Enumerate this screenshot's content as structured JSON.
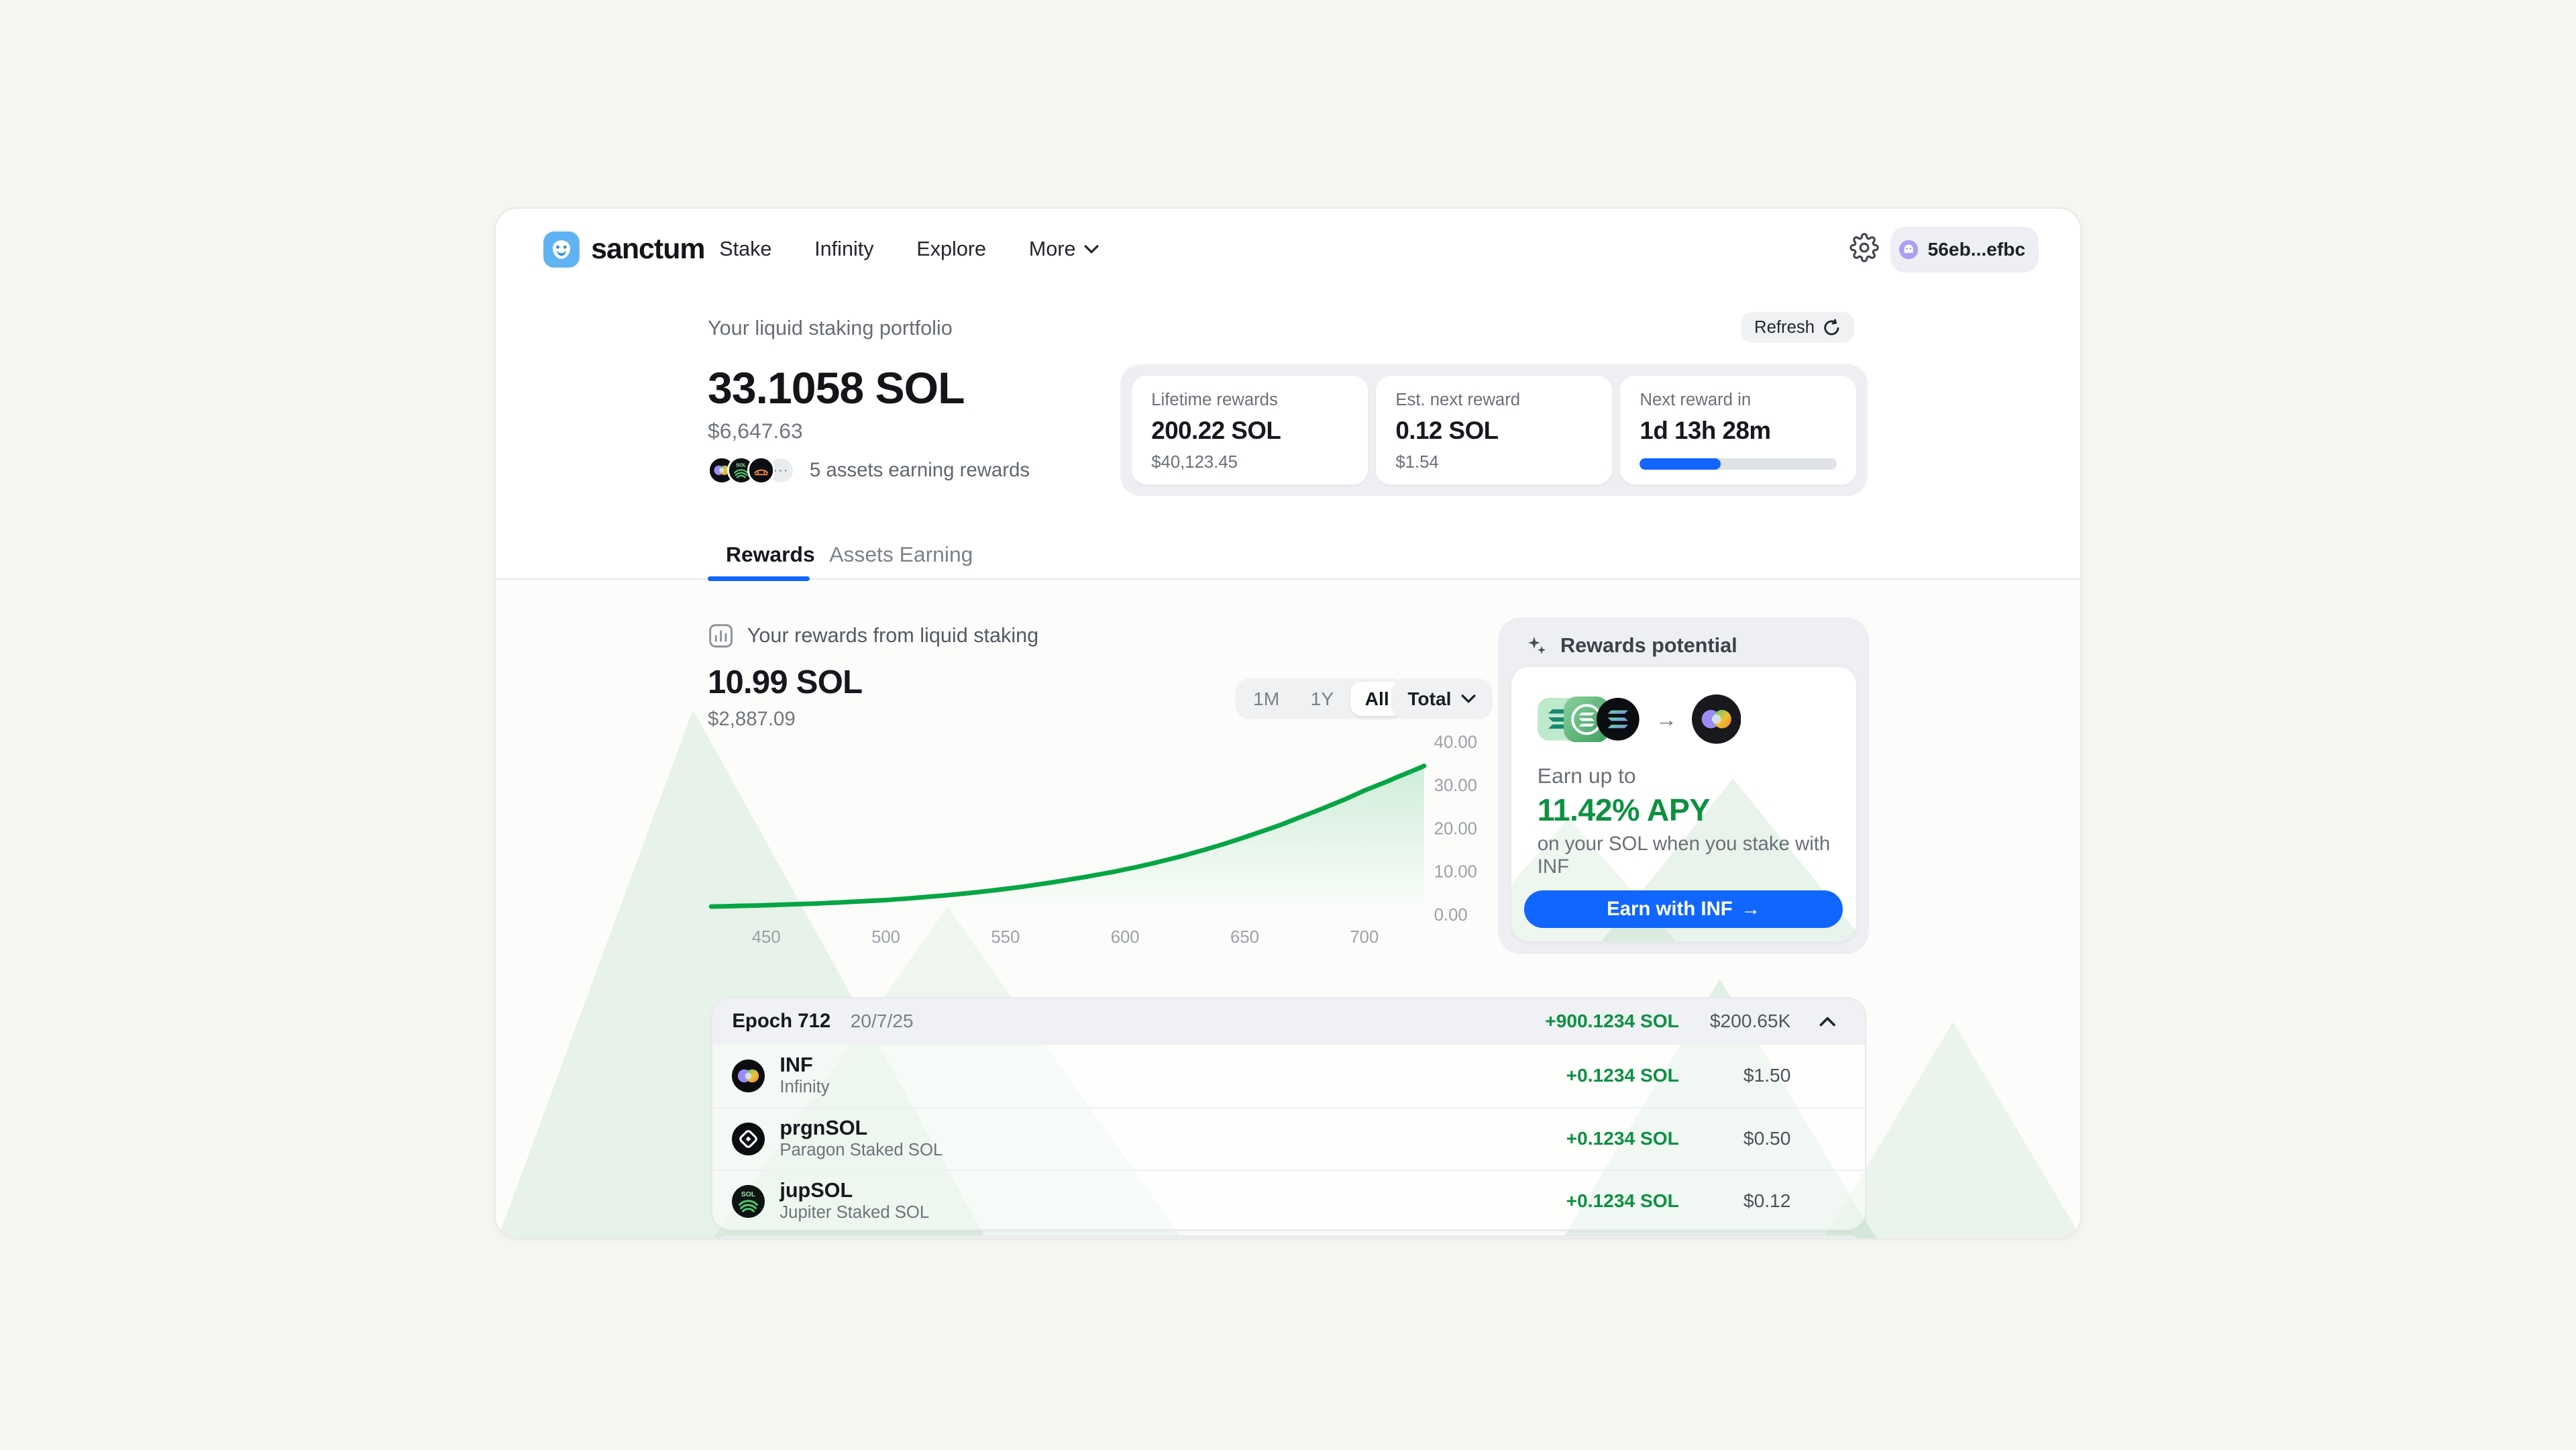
{
  "colors": {
    "page_bg": "#f5f5f2",
    "accent_blue": "#1166ff",
    "green_text": "#0d9141",
    "chart_line": "#07a544",
    "phantom_purple": "#ab9ff2",
    "logo_blue": "#5fb3f3",
    "tab_underline": "#1166ff"
  },
  "glyphs": {
    "ellipsis": "···",
    "arrow_right": "→"
  },
  "header": {
    "brand": "sanctum",
    "nav": [
      {
        "label": "Stake"
      },
      {
        "label": "Infinity"
      },
      {
        "label": "Explore"
      },
      {
        "label": "More"
      }
    ],
    "wallet_label": "56eb...efbc"
  },
  "portfolio": {
    "section_title": "Your liquid staking portfolio",
    "refresh_label": "Refresh",
    "balance_sol": "33.1058 SOL",
    "balance_usd": "$6,647.63",
    "assets_note": "5 assets earning rewards",
    "stats": [
      {
        "label": "Lifetime rewards",
        "value": "200.22 SOL",
        "sub": "$40,123.45"
      },
      {
        "label": "Est. next reward",
        "value": "0.12 SOL",
        "sub": "$1.54"
      },
      {
        "label": "Next reward in",
        "value": "1d 13h 28m",
        "progress_pct": 41
      }
    ]
  },
  "tabs": [
    {
      "label": "Rewards"
    },
    {
      "label": "Assets Earning"
    }
  ],
  "active_tab": "Rewards",
  "rewards_section": {
    "title": "Your rewards from liquid staking",
    "total_sol": "10.99 SOL",
    "total_usd": "$2,887.09",
    "ranges": [
      {
        "label": "1M"
      },
      {
        "label": "1Y"
      },
      {
        "label": "All"
      }
    ],
    "active_range": "All",
    "aggregation_label": "Total"
  },
  "chart_data": {
    "type": "area",
    "title": "Your rewards from liquid staking",
    "x": [
      427,
      450,
      475,
      500,
      525,
      550,
      575,
      600,
      625,
      650,
      675,
      700,
      715,
      725
    ],
    "y": [
      1.9,
      2.2,
      2.7,
      3.4,
      4.5,
      6.0,
      8.0,
      10.5,
      13.8,
      18.0,
      23.0,
      28.8,
      32.2,
      34.5
    ],
    "xlim": [
      427,
      725
    ],
    "ylim": [
      0,
      40
    ],
    "x_ticks": [
      450,
      500,
      550,
      600,
      650,
      700
    ],
    "y_ticks": [
      0,
      10,
      20,
      30,
      40
    ],
    "y_tick_labels": [
      "0.00",
      "10.00",
      "20.00",
      "30.00",
      "40.00"
    ],
    "grid": false,
    "legend": false,
    "y_axis_side": "right",
    "line_color": "#07a544",
    "fill_top": "rgba(7,165,68,0.18)",
    "fill_bottom": "rgba(7,165,68,0)"
  },
  "rewards_potential": {
    "title": "Rewards potential",
    "earn_up_to": "Earn up to",
    "apy": "11.42% APY",
    "description": "on your SOL when you stake with INF",
    "cta_label": "Earn with INF",
    "cta_arrow": "→"
  },
  "epoch_table": {
    "epoch": "Epoch 712",
    "date": "20/7/25",
    "total_sol": "+900.1234 SOL",
    "total_usd": "$200.65K",
    "rows": [
      {
        "symbol": "INF",
        "name": "Infinity",
        "sol": "+0.1234 SOL",
        "usd": "$1.50"
      },
      {
        "symbol": "prgnSOL",
        "name": "Paragon Staked SOL",
        "sol": "+0.1234 SOL",
        "usd": "$0.50"
      },
      {
        "symbol": "jupSOL",
        "name": "Jupiter Staked SOL",
        "sol": "+0.1234 SOL",
        "usd": "$0.12"
      }
    ]
  }
}
